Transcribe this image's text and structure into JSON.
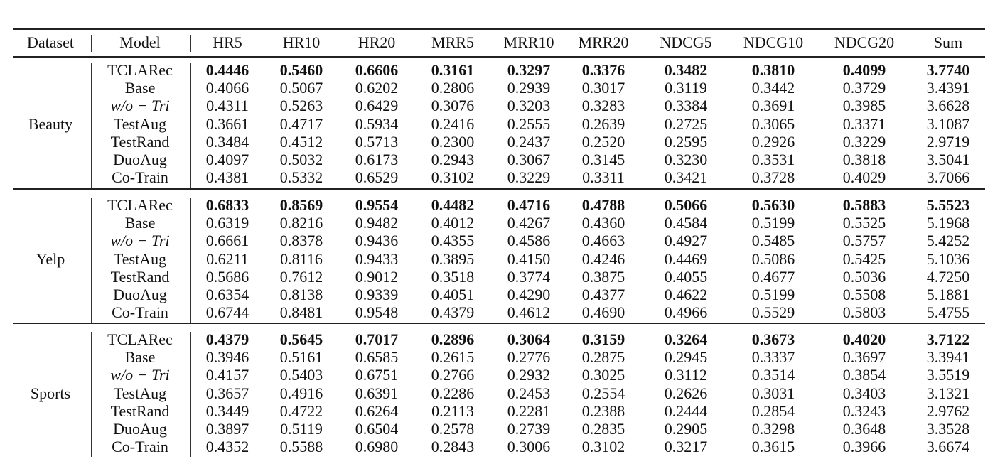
{
  "table": {
    "headers": [
      "Dataset",
      "Model",
      "HR5",
      "HR10",
      "HR20",
      "MRR5",
      "MRR10",
      "MRR20",
      "NDCG5",
      "NDCG10",
      "NDCG20",
      "Sum"
    ],
    "best_model_bold": "TCLARec",
    "groups": [
      {
        "dataset": "Beauty",
        "rows": [
          {
            "model": "TCLARec",
            "values": [
              "0.4446",
              "0.5460",
              "0.6606",
              "0.3161",
              "0.3297",
              "0.3376",
              "0.3482",
              "0.3810",
              "0.4099",
              "3.7740"
            ]
          },
          {
            "model": "Base",
            "values": [
              "0.4066",
              "0.5067",
              "0.6202",
              "0.2806",
              "0.2939",
              "0.3017",
              "0.3119",
              "0.3442",
              "0.3729",
              "3.4391"
            ]
          },
          {
            "model": "w/o − Tri",
            "values": [
              "0.4311",
              "0.5263",
              "0.6429",
              "0.3076",
              "0.3203",
              "0.3283",
              "0.3384",
              "0.3691",
              "0.3985",
              "3.6628"
            ]
          },
          {
            "model": "TestAug",
            "values": [
              "0.3661",
              "0.4717",
              "0.5934",
              "0.2416",
              "0.2555",
              "0.2639",
              "0.2725",
              "0.3065",
              "0.3371",
              "3.1087"
            ]
          },
          {
            "model": "TestRand",
            "values": [
              "0.3484",
              "0.4512",
              "0.5713",
              "0.2300",
              "0.2437",
              "0.2520",
              "0.2595",
              "0.2926",
              "0.3229",
              "2.9719"
            ]
          },
          {
            "model": "DuoAug",
            "values": [
              "0.4097",
              "0.5032",
              "0.6173",
              "0.2943",
              "0.3067",
              "0.3145",
              "0.3230",
              "0.3531",
              "0.3818",
              "3.5041"
            ]
          },
          {
            "model": "Co-Train",
            "values": [
              "0.4381",
              "0.5332",
              "0.6529",
              "0.3102",
              "0.3229",
              "0.3311",
              "0.3421",
              "0.3728",
              "0.4029",
              "3.7066"
            ]
          }
        ]
      },
      {
        "dataset": "Yelp",
        "rows": [
          {
            "model": "TCLARec",
            "values": [
              "0.6833",
              "0.8569",
              "0.9554",
              "0.4482",
              "0.4716",
              "0.4788",
              "0.5066",
              "0.5630",
              "0.5883",
              "5.5523"
            ]
          },
          {
            "model": "Base",
            "values": [
              "0.6319",
              "0.8216",
              "0.9482",
              "0.4012",
              "0.4267",
              "0.4360",
              "0.4584",
              "0.5199",
              "0.5525",
              "5.1968"
            ]
          },
          {
            "model": "w/o − Tri",
            "values": [
              "0.6661",
              "0.8378",
              "0.9436",
              "0.4355",
              "0.4586",
              "0.4663",
              "0.4927",
              "0.5485",
              "0.5757",
              "5.4252"
            ]
          },
          {
            "model": "TestAug",
            "values": [
              "0.6211",
              "0.8116",
              "0.9433",
              "0.3895",
              "0.4150",
              "0.4246",
              "0.4469",
              "0.5086",
              "0.5425",
              "5.1036"
            ]
          },
          {
            "model": "TestRand",
            "values": [
              "0.5686",
              "0.7612",
              "0.9012",
              "0.3518",
              "0.3774",
              "0.3875",
              "0.4055",
              "0.4677",
              "0.5036",
              "4.7250"
            ]
          },
          {
            "model": "DuoAug",
            "values": [
              "0.6354",
              "0.8138",
              "0.9339",
              "0.4051",
              "0.4290",
              "0.4377",
              "0.4622",
              "0.5199",
              "0.5508",
              "5.1881"
            ]
          },
          {
            "model": "Co-Train",
            "values": [
              "0.6744",
              "0.8481",
              "0.9548",
              "0.4379",
              "0.4612",
              "0.4690",
              "0.4966",
              "0.5529",
              "0.5803",
              "5.4755"
            ]
          }
        ]
      },
      {
        "dataset": "Sports",
        "rows": [
          {
            "model": "TCLARec",
            "values": [
              "0.4379",
              "0.5645",
              "0.7017",
              "0.2896",
              "0.3064",
              "0.3159",
              "0.3264",
              "0.3673",
              "0.4020",
              "3.7122"
            ]
          },
          {
            "model": "Base",
            "values": [
              "0.3946",
              "0.5161",
              "0.6585",
              "0.2615",
              "0.2776",
              "0.2875",
              "0.2945",
              "0.3337",
              "0.3697",
              "3.3941"
            ]
          },
          {
            "model": "w/o − Tri",
            "values": [
              "0.4157",
              "0.5403",
              "0.6751",
              "0.2766",
              "0.2932",
              "0.3025",
              "0.3112",
              "0.3514",
              "0.3854",
              "3.5519"
            ]
          },
          {
            "model": "TestAug",
            "values": [
              "0.3657",
              "0.4916",
              "0.6391",
              "0.2286",
              "0.2453",
              "0.2554",
              "0.2626",
              "0.3031",
              "0.3403",
              "3.1321"
            ]
          },
          {
            "model": "TestRand",
            "values": [
              "0.3449",
              "0.4722",
              "0.6264",
              "0.2113",
              "0.2281",
              "0.2388",
              "0.2444",
              "0.2854",
              "0.3243",
              "2.9762"
            ]
          },
          {
            "model": "DuoAug",
            "values": [
              "0.3897",
              "0.5119",
              "0.6504",
              "0.2578",
              "0.2739",
              "0.2835",
              "0.2905",
              "0.3298",
              "0.3648",
              "3.3528"
            ]
          },
          {
            "model": "Co-Train",
            "values": [
              "0.4352",
              "0.5588",
              "0.6980",
              "0.2843",
              "0.3006",
              "0.3102",
              "0.3217",
              "0.3615",
              "0.3966",
              "3.6674"
            ]
          }
        ]
      }
    ]
  }
}
